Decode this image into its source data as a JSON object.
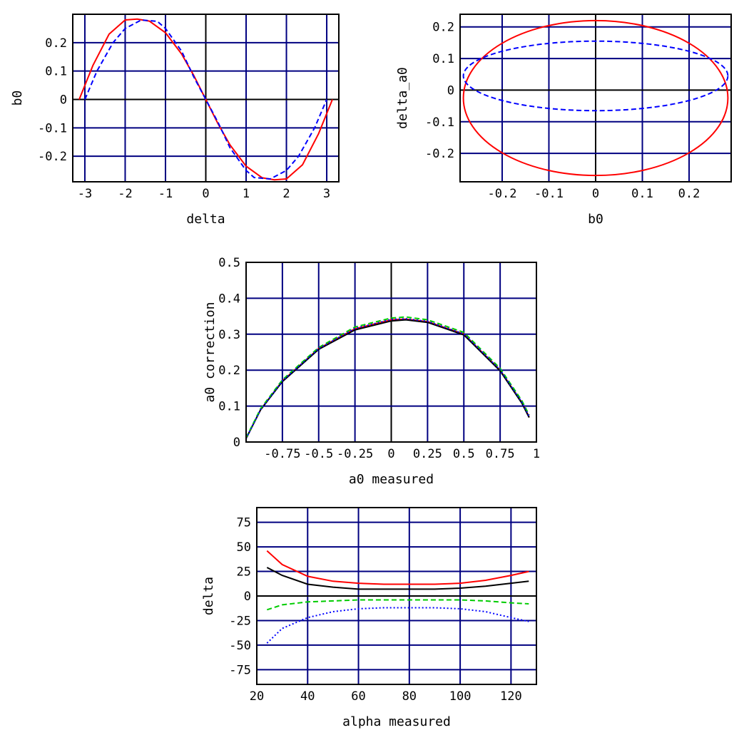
{
  "chart_data": [
    {
      "type": "line",
      "xlabel": "delta",
      "ylabel": "b0",
      "xlim": [
        -3.3,
        3.3
      ],
      "ylim": [
        -0.29,
        0.3
      ],
      "xticks": [
        -3,
        -2,
        -1,
        0,
        1,
        2,
        3
      ],
      "xtick_labels": [
        "-3",
        "-2",
        "-1",
        "0",
        "1",
        "2",
        "3"
      ],
      "yticks": [
        -0.2,
        -0.1,
        0,
        0.1,
        0.2
      ],
      "ytick_labels": [
        "-0.2",
        "-0.1",
        "0",
        "0.1",
        "0.2"
      ],
      "grid": true,
      "series": [
        {
          "color": "#ff0000",
          "style": "solid",
          "x": [
            -3.14,
            -2.8,
            -2.4,
            -2.0,
            -1.7,
            -1.4,
            -1.0,
            -0.6,
            -0.3,
            0,
            0.3,
            0.6,
            1.0,
            1.4,
            1.7,
            2.0,
            2.4,
            2.8,
            3.14
          ],
          "values": [
            0,
            0.12,
            0.23,
            0.28,
            0.283,
            0.276,
            0.235,
            0.16,
            0.085,
            0,
            -0.085,
            -0.16,
            -0.235,
            -0.276,
            -0.283,
            -0.28,
            -0.23,
            -0.12,
            0
          ]
        },
        {
          "color": "#0000ff",
          "style": "dashed",
          "x": [
            -3.0,
            -2.7,
            -2.3,
            -2.0,
            -1.6,
            -1.2,
            -1.0,
            -0.6,
            -0.3,
            0,
            0.3,
            0.6,
            1.0,
            1.2,
            1.6,
            2.0,
            2.3,
            2.7,
            3.0
          ],
          "values": [
            0,
            0.1,
            0.2,
            0.25,
            0.28,
            0.275,
            0.25,
            0.17,
            0.08,
            0,
            -0.08,
            -0.17,
            -0.25,
            -0.275,
            -0.28,
            -0.25,
            -0.2,
            -0.1,
            0
          ]
        }
      ]
    },
    {
      "type": "line",
      "xlabel": "b0",
      "ylabel": "delta_a0",
      "xlim": [
        -0.29,
        0.29
      ],
      "ylim": [
        -0.29,
        0.24
      ],
      "xticks": [
        -0.2,
        -0.1,
        0,
        0.1,
        0.2
      ],
      "xtick_labels": [
        "-0.2",
        "-0.1",
        "0",
        "0.1",
        "0.2"
      ],
      "yticks": [
        -0.2,
        -0.1,
        0,
        0.1,
        0.2
      ],
      "ytick_labels": [
        "-0.2",
        "-0.1",
        "0",
        "0.1",
        "0.2"
      ],
      "grid": true,
      "series": [
        {
          "color": "#ff0000",
          "style": "solid",
          "shape": "ellipse",
          "cx": 0,
          "cy": -0.025,
          "rx": 0.283,
          "ry": 0.245
        },
        {
          "color": "#0000ff",
          "style": "dashed",
          "shape": "ellipse",
          "cx": 0,
          "cy": 0.045,
          "rx": 0.283,
          "ry": 0.11
        }
      ]
    },
    {
      "type": "line",
      "xlabel": "a0 measured",
      "ylabel": "a0 correction",
      "xlim": [
        -1.0,
        1.0
      ],
      "ylim": [
        0,
        0.5
      ],
      "xticks": [
        -0.75,
        -0.5,
        -0.25,
        0,
        0.25,
        0.5,
        0.75,
        1
      ],
      "xtick_labels": [
        "-0.75",
        "-0.5",
        "-0.25",
        "0",
        "0.25",
        "0.5",
        "0.75",
        "1"
      ],
      "yticks": [
        0,
        0.1,
        0.2,
        0.3,
        0.4,
        0.5
      ],
      "ytick_labels": [
        "0",
        "0.1",
        "0.2",
        "0.3",
        "0.4",
        "0.5"
      ],
      "grid": true,
      "series": [
        {
          "color": "#ff0000",
          "style": "solid",
          "x": [
            -1.0,
            -0.9,
            -0.75,
            -0.5,
            -0.25,
            0,
            0.1,
            0.25,
            0.5,
            0.75,
            0.9,
            0.95
          ],
          "values": [
            0.01,
            0.09,
            0.17,
            0.26,
            0.315,
            0.34,
            0.342,
            0.335,
            0.3,
            0.2,
            0.11,
            0.07
          ]
        },
        {
          "color": "#000000",
          "style": "solid",
          "x": [
            -1.0,
            -0.9,
            -0.75,
            -0.5,
            -0.25,
            0,
            0.1,
            0.25,
            0.5,
            0.75,
            0.9,
            0.95
          ],
          "values": [
            0.01,
            0.09,
            0.168,
            0.258,
            0.312,
            0.337,
            0.34,
            0.333,
            0.298,
            0.198,
            0.108,
            0.068
          ]
        },
        {
          "color": "#00cc00",
          "style": "dashed",
          "x": [
            -1.0,
            -0.9,
            -0.75,
            -0.5,
            -0.25,
            0,
            0.1,
            0.25,
            0.5,
            0.75,
            0.9,
            0.95
          ],
          "values": [
            0.012,
            0.093,
            0.173,
            0.263,
            0.32,
            0.345,
            0.348,
            0.34,
            0.305,
            0.205,
            0.115,
            0.075
          ]
        },
        {
          "color": "#0000ff",
          "style": "dotted",
          "x": [
            -1.0,
            -0.9,
            -0.75,
            -0.5,
            -0.25,
            0,
            0.1,
            0.25,
            0.5,
            0.75,
            0.9,
            0.95
          ],
          "values": [
            0.01,
            0.09,
            0.17,
            0.26,
            0.316,
            0.341,
            0.343,
            0.336,
            0.301,
            0.201,
            0.111,
            0.071
          ]
        }
      ]
    },
    {
      "type": "line",
      "xlabel": "alpha measured",
      "ylabel": "delta",
      "xlim": [
        20,
        130
      ],
      "ylim": [
        -90,
        90
      ],
      "xticks": [
        20,
        40,
        60,
        80,
        100,
        120
      ],
      "xtick_labels": [
        "20",
        "40",
        "60",
        "80",
        "100",
        "120"
      ],
      "yticks": [
        -75,
        -50,
        -25,
        0,
        25,
        50,
        75
      ],
      "ytick_labels": [
        "-75",
        "-50",
        "-25",
        "0",
        "25",
        "50",
        "75"
      ],
      "grid": true,
      "series": [
        {
          "color": "#ff0000",
          "style": "solid",
          "x": [
            24,
            30,
            40,
            50,
            60,
            70,
            80,
            90,
            100,
            110,
            120,
            127
          ],
          "values": [
            46,
            32,
            20,
            15,
            13,
            12,
            12,
            12,
            13,
            16,
            21,
            25
          ]
        },
        {
          "color": "#000000",
          "style": "solid",
          "x": [
            24,
            30,
            40,
            50,
            60,
            70,
            80,
            90,
            100,
            110,
            120,
            127
          ],
          "values": [
            29,
            21,
            12,
            9,
            7,
            7,
            7,
            7,
            8,
            10,
            13,
            15
          ]
        },
        {
          "color": "#00cc00",
          "style": "dashed",
          "x": [
            24,
            30,
            40,
            50,
            60,
            70,
            80,
            90,
            100,
            110,
            120,
            127
          ],
          "values": [
            -14,
            -9,
            -6,
            -5,
            -4,
            -4,
            -4,
            -4,
            -4,
            -5,
            -7,
            -8
          ]
        },
        {
          "color": "#0000ff",
          "style": "dotted",
          "x": [
            24,
            30,
            40,
            50,
            60,
            70,
            80,
            90,
            100,
            110,
            120,
            127
          ],
          "values": [
            -48,
            -33,
            -22,
            -16,
            -13,
            -12,
            -12,
            -12,
            -13,
            -16,
            -22,
            -26
          ]
        }
      ]
    }
  ]
}
